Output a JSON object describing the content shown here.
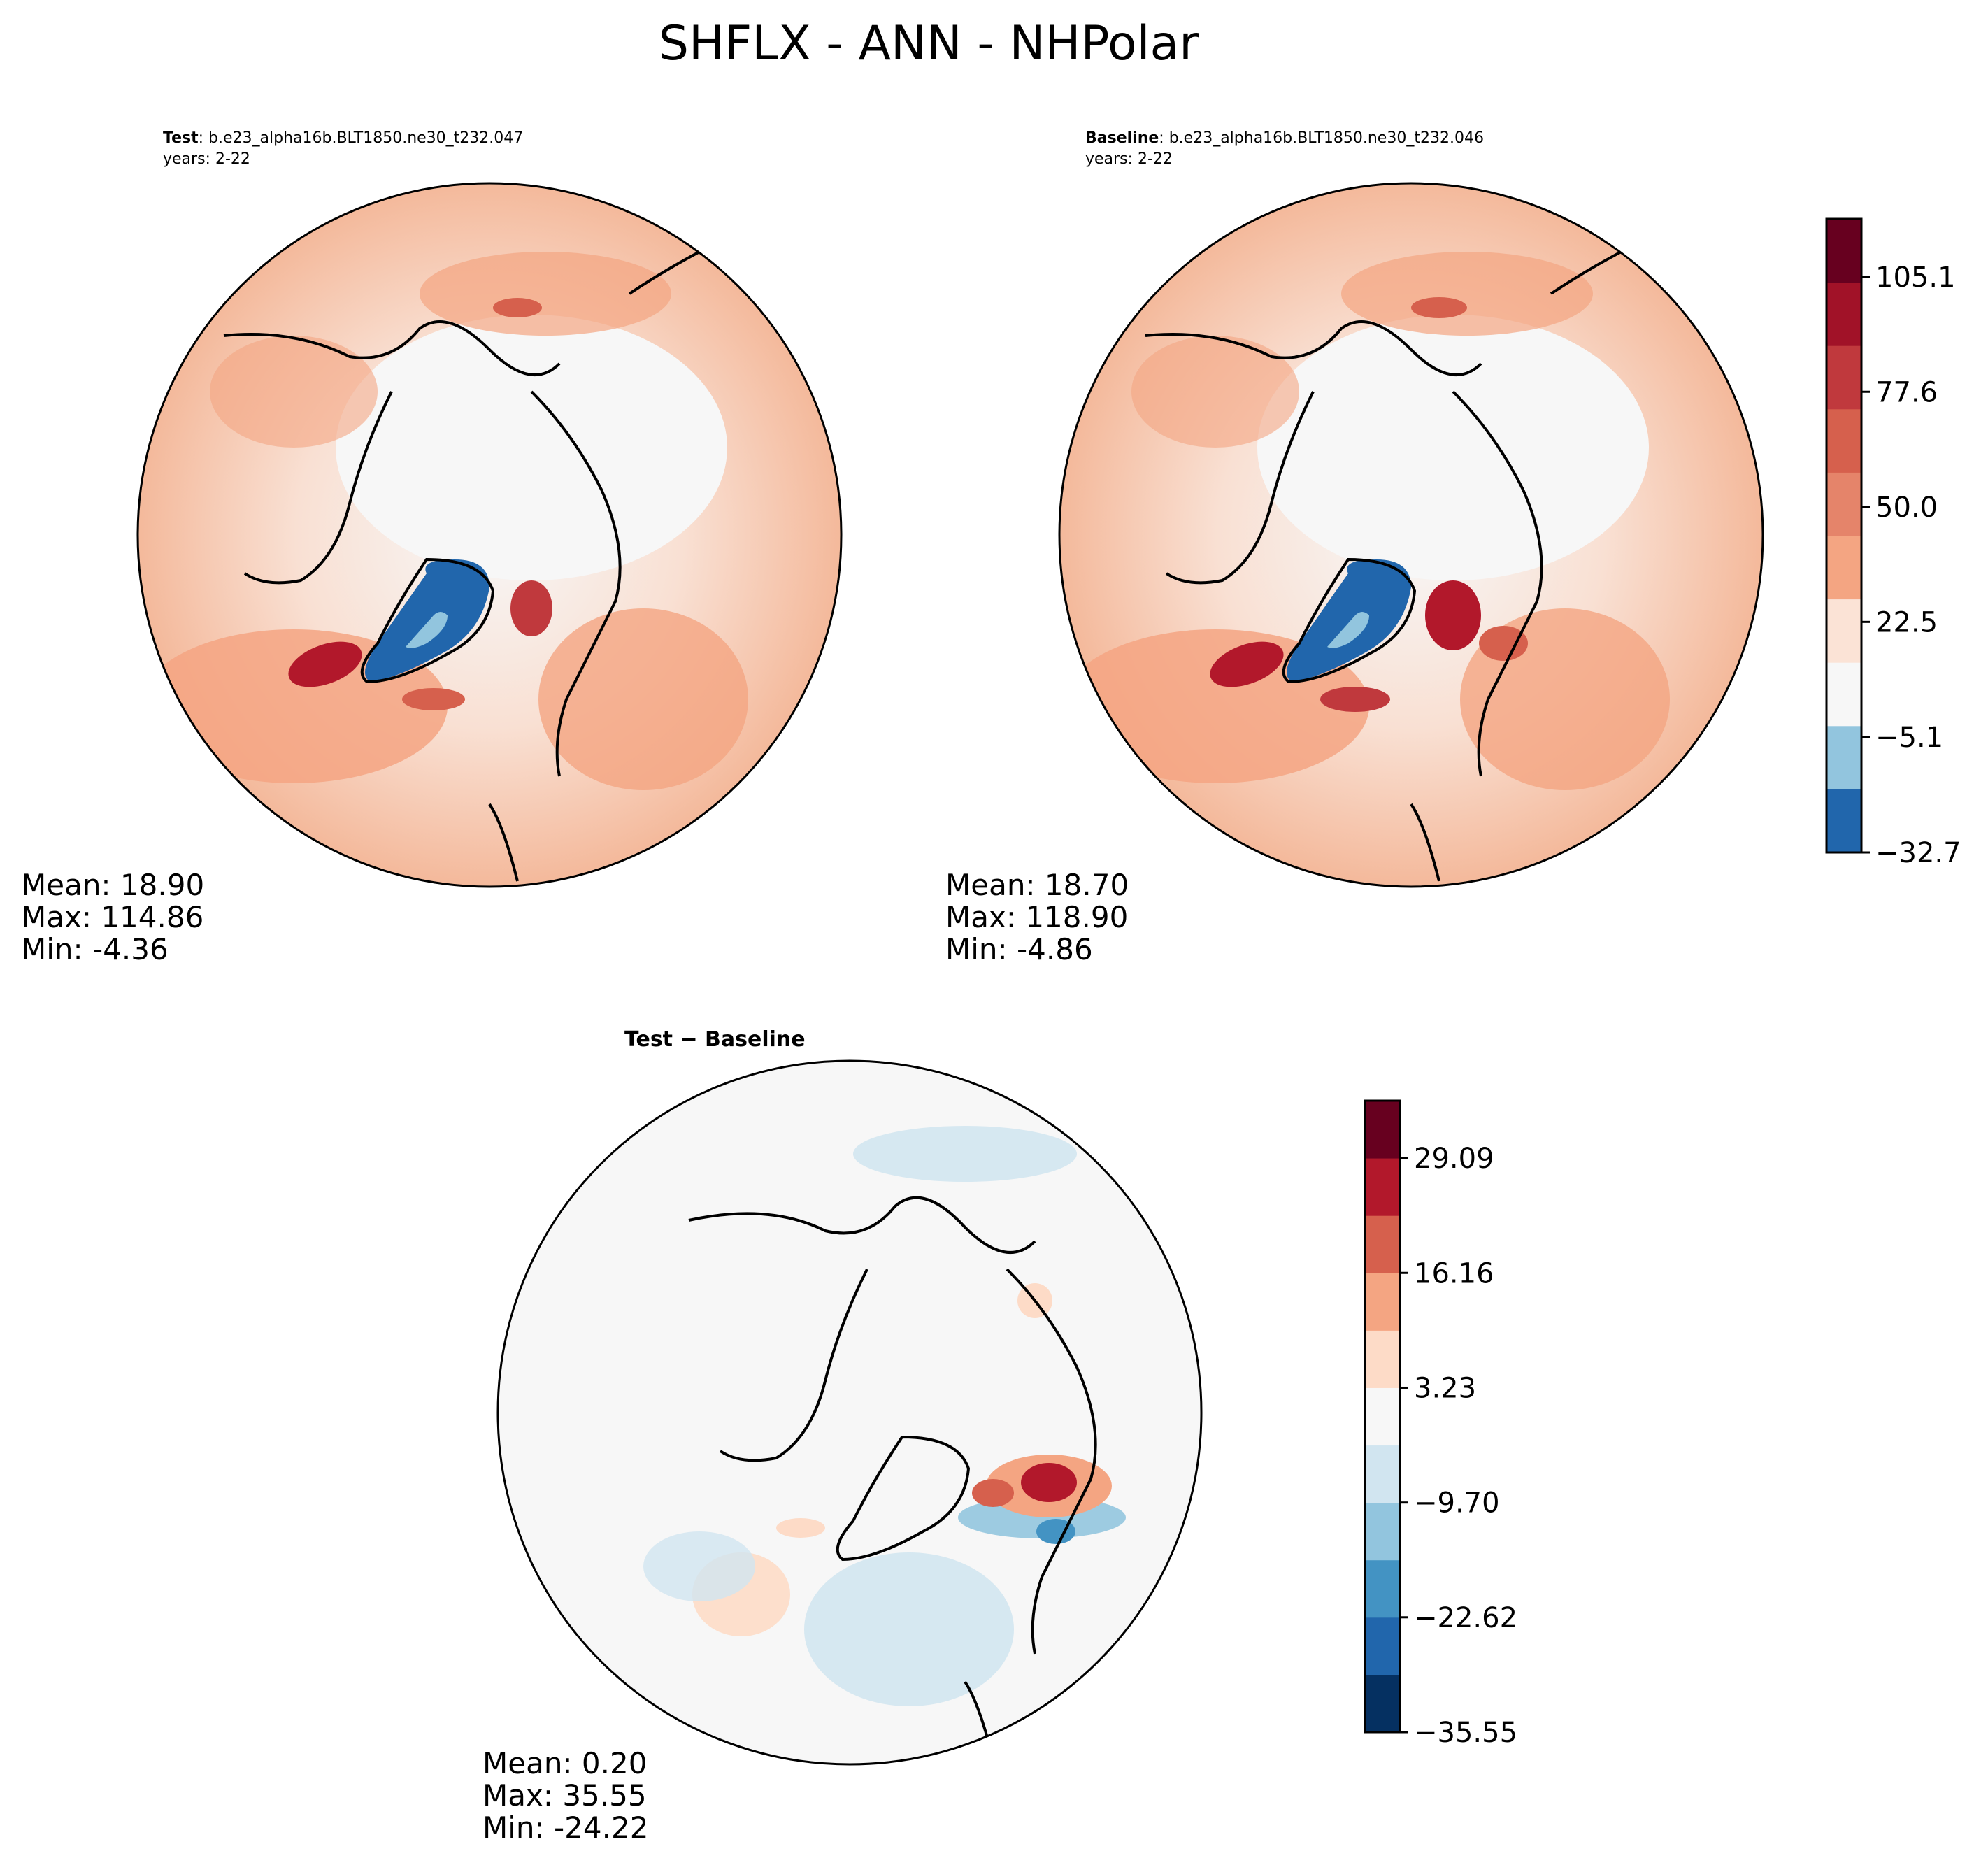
{
  "figure": {
    "title": "SHFLX - ANN - NHPolar",
    "palette": {
      "outline": "#000000",
      "land": "#000000",
      "neutral": "#f7f7f7",
      "levels_red": [
        "#f9ddd0",
        "#f4a582",
        "#e5846a",
        "#d6604d",
        "#c0393d",
        "#a11228",
        "#67001f"
      ],
      "levels_blue": [
        "#d1e5f0",
        "#92c5de",
        "#4393c3",
        "#2166ac",
        "#053061"
      ]
    }
  },
  "panels": {
    "test": {
      "label": "Test",
      "case": ": b.e23_alpha16b.BLT1850.ne30_t232.047",
      "years": "years: 2-22",
      "mean": "Mean: 18.90",
      "max": "Max: 114.86",
      "min": "Min: -4.36"
    },
    "baseline": {
      "label": "Baseline",
      "case": ": b.e23_alpha16b.BLT1850.ne30_t232.046",
      "years": "years: 2-22",
      "mean": "Mean: 18.70",
      "max": "Max: 118.90",
      "min": "Min: -4.86"
    },
    "diff": {
      "title": "Test − Baseline",
      "mean": "Mean:  0.20",
      "max": "Max: 35.55",
      "min": "Min: -24.22"
    }
  },
  "chart_data": [
    {
      "type": "heatmap",
      "title": "Test",
      "projection": "north-polar-stereographic",
      "stats": {
        "mean": 18.9,
        "max": 114.86,
        "min": -4.36
      }
    },
    {
      "type": "heatmap",
      "title": "Baseline",
      "projection": "north-polar-stereographic",
      "stats": {
        "mean": 18.7,
        "max": 118.9,
        "min": -4.86
      },
      "colorbar": {
        "ticks": [
          "105.1",
          "77.6",
          "50.0",
          "22.5",
          "−5.1",
          "−32.7"
        ],
        "tick_values": [
          105.1,
          77.6,
          50.0,
          22.5,
          -5.1,
          -32.7
        ],
        "range": [
          -32.7,
          119.0
        ],
        "colors": [
          "#2166ac",
          "#92c5de",
          "#f7f7f7",
          "#fbe3d6",
          "#f4a582",
          "#e5846a",
          "#d6604d",
          "#c0393d",
          "#a11228",
          "#67001f"
        ]
      }
    },
    {
      "type": "heatmap",
      "title": "Test − Baseline",
      "projection": "north-polar-stereographic",
      "stats": {
        "mean": 0.2,
        "max": 35.55,
        "min": -24.22
      },
      "colorbar": {
        "ticks": [
          "29.09",
          "16.16",
          "3.23",
          "−9.70",
          "−22.62",
          "−35.55"
        ],
        "tick_values": [
          29.09,
          16.16,
          3.23,
          -9.7,
          -22.62,
          -35.55
        ],
        "range": [
          -35.55,
          35.55
        ],
        "colors": [
          "#053061",
          "#2166ac",
          "#4393c3",
          "#92c5de",
          "#d1e5f0",
          "#f7f7f7",
          "#fddbc7",
          "#f4a582",
          "#d6604d",
          "#b2182b",
          "#67001f"
        ]
      }
    }
  ]
}
